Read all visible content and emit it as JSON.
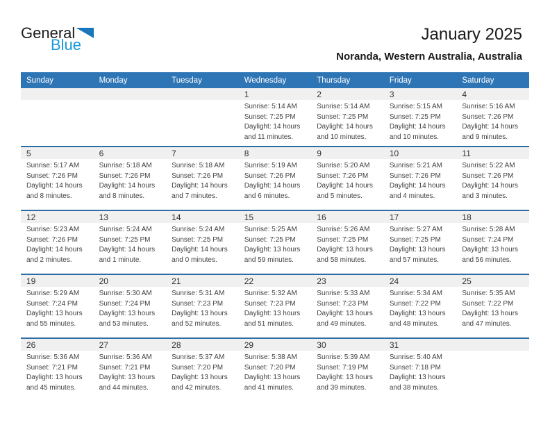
{
  "logo": {
    "part1": "General",
    "part2": "Blue",
    "triangle_icon": "blue-right-triangle"
  },
  "header": {
    "title": "January 2025",
    "subtitle": "Noranda, Western Australia, Australia"
  },
  "colors": {
    "header_bar_blue": "#2E75B6",
    "week_separator_blue": "#2E6DA4",
    "day_strip_gray": "#F0F0F0",
    "logo_text_blue": "#1899D9",
    "logo_triangle_blue": "#1877BD",
    "body_text": "#404040"
  },
  "calendar": {
    "day_headers": [
      "Sunday",
      "Monday",
      "Tuesday",
      "Wednesday",
      "Thursday",
      "Friday",
      "Saturday"
    ],
    "weeks": [
      [
        {
          "day": ""
        },
        {
          "day": ""
        },
        {
          "day": ""
        },
        {
          "day": "1",
          "sunrise": "Sunrise: 5:14 AM",
          "sunset": "Sunset: 7:25 PM",
          "daylight": "Daylight: 14 hours and 11 minutes."
        },
        {
          "day": "2",
          "sunrise": "Sunrise: 5:14 AM",
          "sunset": "Sunset: 7:25 PM",
          "daylight": "Daylight: 14 hours and 10 minutes."
        },
        {
          "day": "3",
          "sunrise": "Sunrise: 5:15 AM",
          "sunset": "Sunset: 7:25 PM",
          "daylight": "Daylight: 14 hours and 10 minutes."
        },
        {
          "day": "4",
          "sunrise": "Sunrise: 5:16 AM",
          "sunset": "Sunset: 7:26 PM",
          "daylight": "Daylight: 14 hours and 9 minutes."
        }
      ],
      [
        {
          "day": "5",
          "sunrise": "Sunrise: 5:17 AM",
          "sunset": "Sunset: 7:26 PM",
          "daylight": "Daylight: 14 hours and 8 minutes."
        },
        {
          "day": "6",
          "sunrise": "Sunrise: 5:18 AM",
          "sunset": "Sunset: 7:26 PM",
          "daylight": "Daylight: 14 hours and 8 minutes."
        },
        {
          "day": "7",
          "sunrise": "Sunrise: 5:18 AM",
          "sunset": "Sunset: 7:26 PM",
          "daylight": "Daylight: 14 hours and 7 minutes."
        },
        {
          "day": "8",
          "sunrise": "Sunrise: 5:19 AM",
          "sunset": "Sunset: 7:26 PM",
          "daylight": "Daylight: 14 hours and 6 minutes."
        },
        {
          "day": "9",
          "sunrise": "Sunrise: 5:20 AM",
          "sunset": "Sunset: 7:26 PM",
          "daylight": "Daylight: 14 hours and 5 minutes."
        },
        {
          "day": "10",
          "sunrise": "Sunrise: 5:21 AM",
          "sunset": "Sunset: 7:26 PM",
          "daylight": "Daylight: 14 hours and 4 minutes."
        },
        {
          "day": "11",
          "sunrise": "Sunrise: 5:22 AM",
          "sunset": "Sunset: 7:26 PM",
          "daylight": "Daylight: 14 hours and 3 minutes."
        }
      ],
      [
        {
          "day": "12",
          "sunrise": "Sunrise: 5:23 AM",
          "sunset": "Sunset: 7:26 PM",
          "daylight": "Daylight: 14 hours and 2 minutes."
        },
        {
          "day": "13",
          "sunrise": "Sunrise: 5:24 AM",
          "sunset": "Sunset: 7:25 PM",
          "daylight": "Daylight: 14 hours and 1 minute."
        },
        {
          "day": "14",
          "sunrise": "Sunrise: 5:24 AM",
          "sunset": "Sunset: 7:25 PM",
          "daylight": "Daylight: 14 hours and 0 minutes."
        },
        {
          "day": "15",
          "sunrise": "Sunrise: 5:25 AM",
          "sunset": "Sunset: 7:25 PM",
          "daylight": "Daylight: 13 hours and 59 minutes."
        },
        {
          "day": "16",
          "sunrise": "Sunrise: 5:26 AM",
          "sunset": "Sunset: 7:25 PM",
          "daylight": "Daylight: 13 hours and 58 minutes."
        },
        {
          "day": "17",
          "sunrise": "Sunrise: 5:27 AM",
          "sunset": "Sunset: 7:25 PM",
          "daylight": "Daylight: 13 hours and 57 minutes."
        },
        {
          "day": "18",
          "sunrise": "Sunrise: 5:28 AM",
          "sunset": "Sunset: 7:24 PM",
          "daylight": "Daylight: 13 hours and 56 minutes."
        }
      ],
      [
        {
          "day": "19",
          "sunrise": "Sunrise: 5:29 AM",
          "sunset": "Sunset: 7:24 PM",
          "daylight": "Daylight: 13 hours and 55 minutes."
        },
        {
          "day": "20",
          "sunrise": "Sunrise: 5:30 AM",
          "sunset": "Sunset: 7:24 PM",
          "daylight": "Daylight: 13 hours and 53 minutes."
        },
        {
          "day": "21",
          "sunrise": "Sunrise: 5:31 AM",
          "sunset": "Sunset: 7:23 PM",
          "daylight": "Daylight: 13 hours and 52 minutes."
        },
        {
          "day": "22",
          "sunrise": "Sunrise: 5:32 AM",
          "sunset": "Sunset: 7:23 PM",
          "daylight": "Daylight: 13 hours and 51 minutes."
        },
        {
          "day": "23",
          "sunrise": "Sunrise: 5:33 AM",
          "sunset": "Sunset: 7:23 PM",
          "daylight": "Daylight: 13 hours and 49 minutes."
        },
        {
          "day": "24",
          "sunrise": "Sunrise: 5:34 AM",
          "sunset": "Sunset: 7:22 PM",
          "daylight": "Daylight: 13 hours and 48 minutes."
        },
        {
          "day": "25",
          "sunrise": "Sunrise: 5:35 AM",
          "sunset": "Sunset: 7:22 PM",
          "daylight": "Daylight: 13 hours and 47 minutes."
        }
      ],
      [
        {
          "day": "26",
          "sunrise": "Sunrise: 5:36 AM",
          "sunset": "Sunset: 7:21 PM",
          "daylight": "Daylight: 13 hours and 45 minutes."
        },
        {
          "day": "27",
          "sunrise": "Sunrise: 5:36 AM",
          "sunset": "Sunset: 7:21 PM",
          "daylight": "Daylight: 13 hours and 44 minutes."
        },
        {
          "day": "28",
          "sunrise": "Sunrise: 5:37 AM",
          "sunset": "Sunset: 7:20 PM",
          "daylight": "Daylight: 13 hours and 42 minutes."
        },
        {
          "day": "29",
          "sunrise": "Sunrise: 5:38 AM",
          "sunset": "Sunset: 7:20 PM",
          "daylight": "Daylight: 13 hours and 41 minutes."
        },
        {
          "day": "30",
          "sunrise": "Sunrise: 5:39 AM",
          "sunset": "Sunset: 7:19 PM",
          "daylight": "Daylight: 13 hours and 39 minutes."
        },
        {
          "day": "31",
          "sunrise": "Sunrise: 5:40 AM",
          "sunset": "Sunset: 7:18 PM",
          "daylight": "Daylight: 13 hours and 38 minutes."
        },
        {
          "day": ""
        }
      ]
    ]
  }
}
